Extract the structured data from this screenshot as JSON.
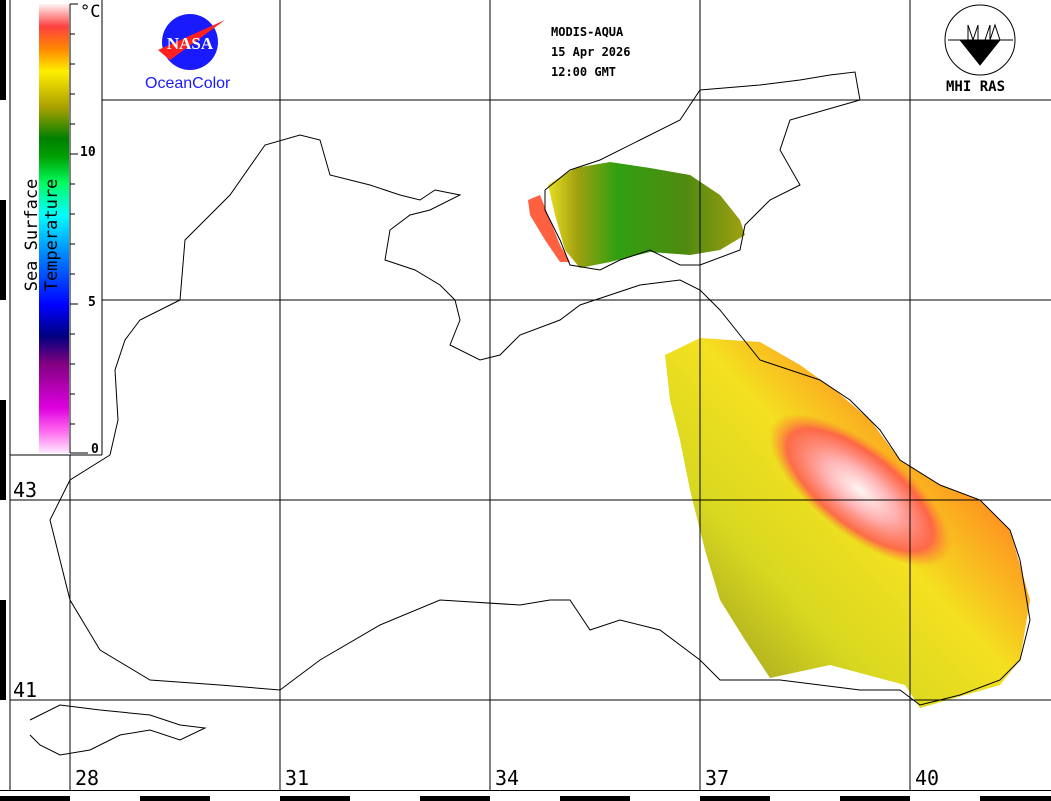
{
  "header": {
    "sensor": "MODIS-AQUA",
    "date": "15 Apr 2026",
    "time": "12:00 GMT"
  },
  "logos": {
    "left_logo_text": "NASA",
    "left_caption": "OceanColor",
    "right_caption": "MHI RAS"
  },
  "colorbar": {
    "title": "Sea Surface Temperature",
    "unit": "°C",
    "ticks": [
      "10",
      "5",
      "0"
    ],
    "range": [
      0,
      15
    ]
  },
  "axes": {
    "latitude_labels": [
      "43",
      "41"
    ],
    "longitude_labels": [
      "28",
      "31",
      "34",
      "37",
      "40"
    ]
  },
  "colors": {
    "grid": "#000000",
    "coast": "#000000",
    "accent_blue": "#1a1aff"
  }
}
